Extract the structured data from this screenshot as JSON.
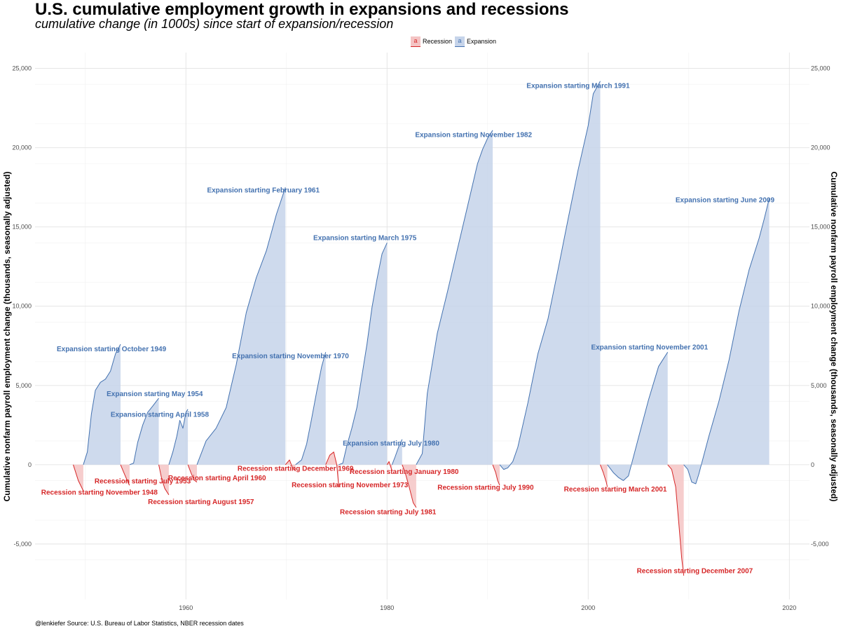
{
  "chart_data": {
    "type": "area",
    "title": "U.S. cumulative employment growth in expansions and recessions",
    "subtitle": "cumulative change (in 1000s) since start of expansion/recession",
    "ylabel": "Cumulative nonfarm payroll employment change (thousands, seasonally adjusted)",
    "ylabel_right": "Cumulative nonfarm payroll employment change (thousands, seasonally adjusted)",
    "caption": "@lenkiefer Source: U.S. Bureau of Labor Statistics, NBER recession dates",
    "xlim": [
      1945,
      2022
    ],
    "ylim": [
      -8500,
      26000
    ],
    "x_ticks": [
      1960,
      1980,
      2000,
      2020
    ],
    "y_ticks": [
      -5000,
      0,
      5000,
      10000,
      15000,
      20000,
      25000
    ],
    "y_tick_labels": [
      "-5,000",
      "0",
      "5,000",
      "10,000",
      "15,000",
      "20,000",
      "25,000"
    ],
    "grid": true,
    "legend_position": "top",
    "legend": [
      {
        "name": "Recession",
        "color": "#d62728",
        "fill": "#f4c4c4"
      },
      {
        "name": "Expansion",
        "color": "#4472b0",
        "fill": "#c6d4ea"
      }
    ],
    "series": [
      {
        "name": "Recession",
        "kind": "recession",
        "x": [
          1948.8,
          1949.3,
          1949.8
        ],
        "y": [
          0,
          -1000,
          -1650
        ]
      },
      {
        "name": "Expansion",
        "kind": "expansion",
        "x": [
          1949.8,
          1950.2,
          1950.6,
          1951.0,
          1951.5,
          1952.0,
          1952.5,
          1953.0,
          1953.5
        ],
        "y": [
          0,
          800,
          3200,
          4700,
          5200,
          5400,
          5900,
          7000,
          7600
        ]
      },
      {
        "name": "Recession",
        "kind": "recession",
        "x": [
          1953.5,
          1953.9,
          1954.3,
          1954.4
        ],
        "y": [
          0,
          -600,
          -1200,
          -1300
        ]
      },
      {
        "name": "Expansion",
        "kind": "expansion",
        "x": [
          1954.4,
          1954.8,
          1955.2,
          1955.7,
          1956.2,
          1956.7,
          1957.3
        ],
        "y": [
          0,
          100,
          1400,
          2500,
          3300,
          3700,
          4200
        ]
      },
      {
        "name": "Recession",
        "kind": "recession",
        "x": [
          1957.3,
          1957.6,
          1957.9,
          1958.3
        ],
        "y": [
          0,
          -900,
          -1500,
          -1900
        ]
      },
      {
        "name": "Expansion",
        "kind": "expansion",
        "x": [
          1958.3,
          1958.7,
          1959.1,
          1959.4,
          1959.7,
          1960.0,
          1960.2
        ],
        "y": [
          0,
          800,
          1800,
          2800,
          2300,
          3300,
          3500
        ]
      },
      {
        "name": "Recession",
        "kind": "recession",
        "x": [
          1960.2,
          1960.5,
          1960.8,
          1961.1
        ],
        "y": [
          0,
          -500,
          -950,
          -1100
        ]
      },
      {
        "name": "Expansion",
        "kind": "expansion",
        "x": [
          1961.1,
          1962.0,
          1963.0,
          1964.0,
          1965.0,
          1966.0,
          1967.0,
          1968.0,
          1969.0,
          1969.9
        ],
        "y": [
          0,
          1500,
          2300,
          3600,
          6300,
          9600,
          11800,
          13500,
          15800,
          17500
        ]
      },
      {
        "name": "Recession",
        "kind": "recession",
        "x": [
          1969.9,
          1970.3,
          1970.6,
          1970.9
        ],
        "y": [
          0,
          300,
          -200,
          -400
        ]
      },
      {
        "name": "Expansion",
        "kind": "expansion",
        "x": [
          1970.9,
          1971.5,
          1972.0,
          1972.5,
          1973.0,
          1973.5,
          1973.9
        ],
        "y": [
          0,
          300,
          1300,
          2900,
          4600,
          6200,
          7100
        ]
      },
      {
        "name": "Recession",
        "kind": "recession",
        "x": [
          1973.9,
          1974.3,
          1974.7,
          1975.0,
          1975.2
        ],
        "y": [
          0,
          600,
          800,
          0,
          -1400
        ]
      },
      {
        "name": "Expansion",
        "kind": "expansion",
        "x": [
          1975.2,
          1975.6,
          1976.0,
          1976.5,
          1977.0,
          1977.5,
          1978.0,
          1978.5,
          1979.0,
          1979.5,
          1980.0
        ],
        "y": [
          0,
          100,
          1200,
          2300,
          3600,
          5600,
          7600,
          9900,
          11700,
          13300,
          14000
        ]
      },
      {
        "name": "Recession",
        "kind": "recession",
        "x": [
          1980.0,
          1980.2,
          1980.4,
          1980.5
        ],
        "y": [
          0,
          200,
          -200,
          -400
        ]
      },
      {
        "name": "Expansion",
        "kind": "expansion",
        "x": [
          1980.5,
          1980.8,
          1981.2,
          1981.5
        ],
        "y": [
          0,
          500,
          1200,
          1600
        ]
      },
      {
        "name": "Recession",
        "kind": "recession",
        "x": [
          1981.5,
          1981.8,
          1982.2,
          1982.6,
          1982.9
        ],
        "y": [
          0,
          -500,
          -1400,
          -2400,
          -2700
        ]
      },
      {
        "name": "Expansion",
        "kind": "expansion",
        "x": [
          1982.9,
          1983.5,
          1984.0,
          1985.0,
          1986.0,
          1987.0,
          1988.0,
          1989.0,
          1989.5,
          1990.0,
          1990.5
        ],
        "y": [
          0,
          700,
          4500,
          8300,
          10900,
          13600,
          16300,
          19000,
          19900,
          20600,
          21100
        ]
      },
      {
        "name": "Recession",
        "kind": "recession",
        "x": [
          1990.5,
          1990.8,
          1991.0,
          1991.2
        ],
        "y": [
          0,
          -500,
          -1000,
          -1300
        ]
      },
      {
        "name": "Expansion",
        "kind": "expansion",
        "x": [
          1991.2,
          1991.6,
          1992.0,
          1992.5,
          1993.0,
          1994.0,
          1995.0,
          1996.0,
          1997.0,
          1998.0,
          1999.0,
          2000.0,
          2000.5,
          2001.2
        ],
        "y": [
          0,
          -300,
          -200,
          200,
          1100,
          3900,
          7000,
          9200,
          12300,
          15500,
          18600,
          21400,
          23400,
          24200
        ]
      },
      {
        "name": "Recession",
        "kind": "recession",
        "x": [
          2001.2,
          2001.5,
          2001.8,
          2001.9
        ],
        "y": [
          0,
          -500,
          -1100,
          -1400
        ]
      },
      {
        "name": "Expansion",
        "kind": "expansion",
        "x": [
          2001.9,
          2002.5,
          2003.0,
          2003.5,
          2004.0,
          2005.0,
          2006.0,
          2007.0,
          2007.5,
          2007.9
        ],
        "y": [
          0,
          -500,
          -800,
          -1000,
          -700,
          1700,
          4100,
          6200,
          6700,
          7100
        ]
      },
      {
        "name": "Recession",
        "kind": "recession",
        "x": [
          2007.9,
          2008.3,
          2008.7,
          2009.0,
          2009.3,
          2009.5
        ],
        "y": [
          0,
          -300,
          -1400,
          -3600,
          -5900,
          -7000
        ]
      },
      {
        "name": "Expansion",
        "kind": "expansion",
        "x": [
          2009.5,
          2009.9,
          2010.3,
          2010.7,
          2011.0,
          2012.0,
          2013.0,
          2014.0,
          2015.0,
          2016.0,
          2017.0,
          2017.5,
          2018.0
        ],
        "y": [
          0,
          -300,
          -1100,
          -1200,
          -600,
          1800,
          4000,
          6600,
          9700,
          12300,
          14300,
          15500,
          16800
        ]
      }
    ],
    "annotations": [
      {
        "text": "Expansion starting October 1949",
        "kind": "expansion",
        "x": 1952.6,
        "y": 7300
      },
      {
        "text": "Expansion starting May 1954",
        "kind": "expansion",
        "x": 1956.9,
        "y": 4450
      },
      {
        "text": "Expansion starting April 1958",
        "kind": "expansion",
        "x": 1957.4,
        "y": 3150
      },
      {
        "text": "Expansion starting February 1961",
        "kind": "expansion",
        "x": 1967.7,
        "y": 17300
      },
      {
        "text": "Expansion starting November 1970",
        "kind": "expansion",
        "x": 1970.4,
        "y": 6850
      },
      {
        "text": "Expansion starting March 1975",
        "kind": "expansion",
        "x": 1977.8,
        "y": 14300
      },
      {
        "text": "Expansion starting July 1980",
        "kind": "expansion",
        "x": 1980.4,
        "y": 1350
      },
      {
        "text": "Expansion starting November 1982",
        "kind": "expansion",
        "x": 1988.6,
        "y": 20800
      },
      {
        "text": "Expansion starting March 1991",
        "kind": "expansion",
        "x": 1999.0,
        "y": 23900
      },
      {
        "text": "Expansion starting November 2001",
        "kind": "expansion",
        "x": 2006.1,
        "y": 7400
      },
      {
        "text": "Expansion starting June 2009",
        "kind": "expansion",
        "x": 2013.6,
        "y": 16700
      },
      {
        "text": "Recession starting November 1948",
        "kind": "recession",
        "x": 1951.4,
        "y": -1750
      },
      {
        "text": "Recession starting July 1953",
        "kind": "recession",
        "x": 1955.7,
        "y": -1050
      },
      {
        "text": "Recession starting August 1957",
        "kind": "recession",
        "x": 1961.5,
        "y": -2350
      },
      {
        "text": "Recession starting April 1960",
        "kind": "recession",
        "x": 1963.1,
        "y": -850
      },
      {
        "text": "Recession starting December 1969",
        "kind": "recession",
        "x": 1970.9,
        "y": -250
      },
      {
        "text": "Recession starting November 1973",
        "kind": "recession",
        "x": 1976.3,
        "y": -1300
      },
      {
        "text": "Recession starting January 1980",
        "kind": "recession",
        "x": 1981.7,
        "y": -450
      },
      {
        "text": "Recession starting July 1981",
        "kind": "recession",
        "x": 1980.1,
        "y": -3000
      },
      {
        "text": "Recession starting July 1990",
        "kind": "recession",
        "x": 1989.8,
        "y": -1450
      },
      {
        "text": "Recession starting March 2001",
        "kind": "recession",
        "x": 2002.7,
        "y": -1550
      },
      {
        "text": "Recession starting December 2007",
        "kind": "recession",
        "x": 2010.6,
        "y": -6700
      }
    ]
  }
}
